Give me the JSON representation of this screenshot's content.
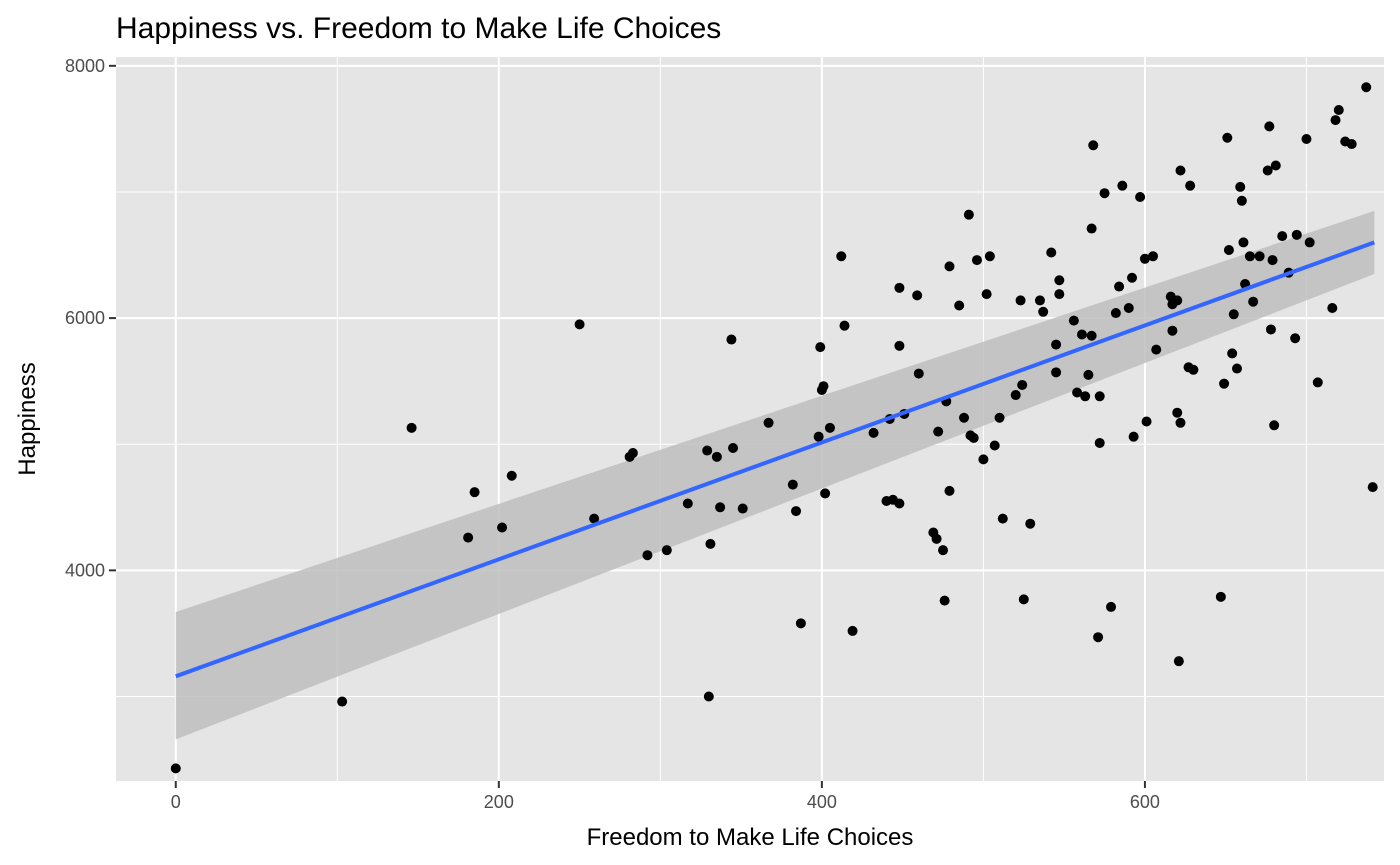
{
  "chart_data": {
    "type": "scatter",
    "title": "Happiness vs. Freedom to Make Life Choices",
    "xlabel": "Freedom to Make Life Choices",
    "ylabel": "Happiness",
    "xlim": [
      -37,
      748
    ],
    "ylim": [
      2330,
      8070
    ],
    "x_ticks": [
      0,
      200,
      400,
      600
    ],
    "y_ticks": [
      4000,
      6000,
      8000
    ],
    "grid": true,
    "colors": {
      "panel": "#E5E5E5",
      "grid": "#FFFFFF",
      "points": "#000000",
      "fit_line": "#3366FF",
      "ribbon": "#BEBEBE"
    },
    "regression": {
      "x": [
        0,
        742
      ],
      "y": [
        3160,
        6600
      ],
      "ribbon_lower": [
        2660,
        6350
      ],
      "ribbon_upper": [
        3670,
        6850
      ]
    },
    "points": [
      [
        0,
        2430
      ],
      [
        103,
        2960
      ],
      [
        146,
        5130
      ],
      [
        181,
        4260
      ],
      [
        185,
        4620
      ],
      [
        202,
        4340
      ],
      [
        208,
        4750
      ],
      [
        250,
        5950
      ],
      [
        259,
        4410
      ],
      [
        281,
        4900
      ],
      [
        283,
        4930
      ],
      [
        292,
        4120
      ],
      [
        304,
        4160
      ],
      [
        317,
        4530
      ],
      [
        329,
        4950
      ],
      [
        330,
        3000
      ],
      [
        331,
        4210
      ],
      [
        335,
        4900
      ],
      [
        337,
        4500
      ],
      [
        344,
        5830
      ],
      [
        345,
        4970
      ],
      [
        351,
        4490
      ],
      [
        367,
        5170
      ],
      [
        382,
        4680
      ],
      [
        384,
        4470
      ],
      [
        387,
        3580
      ],
      [
        398,
        5060
      ],
      [
        399,
        5770
      ],
      [
        400,
        5430
      ],
      [
        401,
        5460
      ],
      [
        402,
        4610
      ],
      [
        405,
        5130
      ],
      [
        412,
        6490
      ],
      [
        414,
        5940
      ],
      [
        419,
        3520
      ],
      [
        432,
        5090
      ],
      [
        440,
        4550
      ],
      [
        442,
        5200
      ],
      [
        444,
        4560
      ],
      [
        448,
        4530
      ],
      [
        448,
        6240
      ],
      [
        448,
        5780
      ],
      [
        451,
        5240
      ],
      [
        459,
        6180
      ],
      [
        460,
        5560
      ],
      [
        469,
        4300
      ],
      [
        471,
        4250
      ],
      [
        472,
        5100
      ],
      [
        475,
        4160
      ],
      [
        476,
        3760
      ],
      [
        477,
        5340
      ],
      [
        479,
        6410
      ],
      [
        479,
        4630
      ],
      [
        485,
        6100
      ],
      [
        488,
        5210
      ],
      [
        491,
        6820
      ],
      [
        492,
        5070
      ],
      [
        494,
        5050
      ],
      [
        496,
        6460
      ],
      [
        500,
        4880
      ],
      [
        502,
        6190
      ],
      [
        504,
        6490
      ],
      [
        507,
        4990
      ],
      [
        510,
        5210
      ],
      [
        512,
        4410
      ],
      [
        520,
        5390
      ],
      [
        523,
        6140
      ],
      [
        524,
        5470
      ],
      [
        525,
        3770
      ],
      [
        529,
        4370
      ],
      [
        535,
        6140
      ],
      [
        537,
        6050
      ],
      [
        542,
        6520
      ],
      [
        545,
        5790
      ],
      [
        545,
        5570
      ],
      [
        547,
        6190
      ],
      [
        547,
        6300
      ],
      [
        556,
        5980
      ],
      [
        558,
        5410
      ],
      [
        561,
        5870
      ],
      [
        563,
        5380
      ],
      [
        565,
        5550
      ],
      [
        567,
        5860
      ],
      [
        567,
        6710
      ],
      [
        568,
        7370
      ],
      [
        571,
        3470
      ],
      [
        572,
        5010
      ],
      [
        572,
        5380
      ],
      [
        575,
        6990
      ],
      [
        579,
        3710
      ],
      [
        582,
        6040
      ],
      [
        584,
        6250
      ],
      [
        586,
        7050
      ],
      [
        590,
        6080
      ],
      [
        592,
        6320
      ],
      [
        593,
        5060
      ],
      [
        597,
        6960
      ],
      [
        600,
        6470
      ],
      [
        601,
        5180
      ],
      [
        605,
        6490
      ],
      [
        607,
        5750
      ],
      [
        616,
        6170
      ],
      [
        617,
        5900
      ],
      [
        617,
        6110
      ],
      [
        620,
        5250
      ],
      [
        620,
        6140
      ],
      [
        621,
        3280
      ],
      [
        622,
        5170
      ],
      [
        622,
        7170
      ],
      [
        627,
        5610
      ],
      [
        628,
        7050
      ],
      [
        630,
        5590
      ],
      [
        647,
        3790
      ],
      [
        649,
        5480
      ],
      [
        651,
        7430
      ],
      [
        652,
        6540
      ],
      [
        654,
        5720
      ],
      [
        655,
        6030
      ],
      [
        657,
        5600
      ],
      [
        659,
        7040
      ],
      [
        660,
        6930
      ],
      [
        661,
        6600
      ],
      [
        662,
        6270
      ],
      [
        665,
        6490
      ],
      [
        667,
        6130
      ],
      [
        671,
        6490
      ],
      [
        676,
        7170
      ],
      [
        677,
        7520
      ],
      [
        678,
        5910
      ],
      [
        679,
        6460
      ],
      [
        680,
        5150
      ],
      [
        681,
        7210
      ],
      [
        685,
        6650
      ],
      [
        689,
        6360
      ],
      [
        693,
        5840
      ],
      [
        694,
        6660
      ],
      [
        700,
        7420
      ],
      [
        702,
        6600
      ],
      [
        707,
        5490
      ],
      [
        716,
        6080
      ],
      [
        718,
        7570
      ],
      [
        720,
        7650
      ],
      [
        724,
        7400
      ],
      [
        728,
        7380
      ],
      [
        737,
        7830
      ],
      [
        741,
        4660
      ]
    ]
  }
}
